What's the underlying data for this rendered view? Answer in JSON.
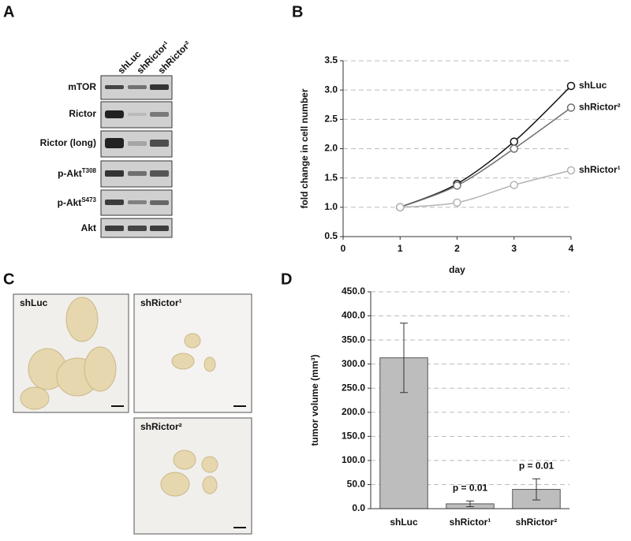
{
  "panel_labels": [
    "A",
    "B",
    "C",
    "D"
  ],
  "blot": {
    "lanes": [
      "shLuc",
      "shRictor¹",
      "shRictor²"
    ],
    "rows": [
      {
        "base": "mTOR"
      },
      {
        "base": "Rictor"
      },
      {
        "base": "Rictor (long)"
      },
      {
        "base": "p-Akt",
        "sup": "T308"
      },
      {
        "base": "p-Akt",
        "sup": "S473"
      },
      {
        "base": "Akt"
      }
    ]
  },
  "photos": [
    "shLuc",
    "shRictor¹",
    "shRictor²"
  ],
  "chart_data": [
    {
      "type": "line",
      "xlabel": "day",
      "ylabel": "fold change in cell number",
      "x": [
        1,
        2,
        3,
        4
      ],
      "xlim": [
        0,
        4
      ],
      "xticks": [
        0,
        1,
        2,
        3,
        4
      ],
      "ylim": [
        0.5,
        3.5
      ],
      "yticks": [
        {
          "value": 0.5,
          "label": "0.5"
        },
        {
          "value": 1,
          "label": "1.0"
        },
        {
          "value": 1.5,
          "label": "1.5"
        },
        {
          "value": 2,
          "label": "2.0"
        },
        {
          "value": 2.5,
          "label": "2.5"
        },
        {
          "value": 3,
          "label": "3.0"
        },
        {
          "value": 3.5,
          "label": "3.5"
        }
      ],
      "grid": true,
      "series": [
        {
          "name": "shLuc",
          "color": "#111111",
          "values": [
            1,
            1.4,
            2.12,
            3.07
          ]
        },
        {
          "name": "shRictor²",
          "color": "#707070",
          "values": [
            1,
            1.37,
            2.0,
            2.7
          ]
        },
        {
          "name": "shRictor¹",
          "color": "#b4b4b4",
          "values": [
            1,
            1.08,
            1.38,
            1.63
          ]
        }
      ]
    },
    {
      "type": "bar",
      "ylabel": "tumor volume (mm³)",
      "categories": [
        "shLuc",
        "shRictor¹",
        "shRictor²"
      ],
      "values": [
        313,
        10,
        40
      ],
      "errors": [
        72,
        6,
        22
      ],
      "annotations": [
        null,
        "p = 0.01",
        "p = 0.01"
      ],
      "color": "#bdbdbd",
      "ylim": [
        0,
        450
      ],
      "yticks": [
        {
          "value": 0,
          "label": "0.0"
        },
        {
          "value": 50,
          "label": "50.0"
        },
        {
          "value": 100,
          "label": "100.0"
        },
        {
          "value": 150,
          "label": "150.0"
        },
        {
          "value": 200,
          "label": "200.0"
        },
        {
          "value": 250,
          "label": "250.0"
        },
        {
          "value": 300,
          "label": "300.0"
        },
        {
          "value": 350,
          "label": "350.0"
        },
        {
          "value": 400,
          "label": "400.0"
        },
        {
          "value": 450,
          "label": "450.0"
        }
      ],
      "grid": true
    }
  ]
}
